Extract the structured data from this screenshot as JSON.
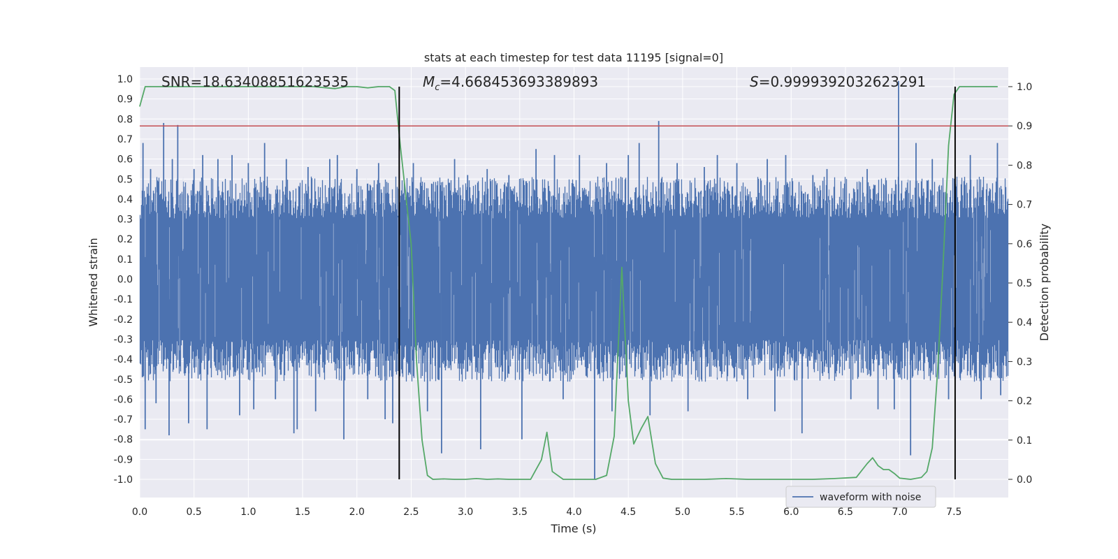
{
  "chart_data": {
    "type": "line",
    "title": "stats at each timestep for test data 11195 [signal=0]",
    "xlabel": "Time (s)",
    "ylabel": "Whitened strain",
    "ylabel_right": "Detection probability",
    "xlim": [
      0.0,
      8.0
    ],
    "ylim": [
      -1.1,
      1.05
    ],
    "ylim_right": [
      -0.05,
      1.05
    ],
    "grid": true,
    "legend_placement": "lower-right",
    "x_ticks": [
      "0.0",
      "0.5",
      "1.0",
      "1.5",
      "2.0",
      "2.5",
      "3.0",
      "3.5",
      "4.0",
      "4.5",
      "5.0",
      "5.5",
      "6.0",
      "6.5",
      "7.0",
      "7.5"
    ],
    "y_ticks": [
      "1.0",
      "0.9",
      "0.8",
      "0.7",
      "0.6",
      "0.5",
      "0.4",
      "0.3",
      "0.2",
      "0.1",
      "0.0",
      "-0.1",
      "-0.2",
      "-0.3",
      "-0.4",
      "-0.5",
      "-0.6",
      "-0.7",
      "-0.8",
      "-0.9",
      "-1.0"
    ],
    "y_ticks_right": [
      "1.0",
      "0.9",
      "0.8",
      "0.7",
      "0.6",
      "0.5",
      "0.4",
      "0.3",
      "0.2",
      "0.1",
      "0.0"
    ],
    "annotations": {
      "snr": "SNR=18.63408851623535",
      "mc_symbol": "M",
      "mc_sub": "c",
      "mc_value": "=4.668453693389893",
      "s_symbol": "S",
      "s_value": "=0.9999392032623291"
    },
    "series": [
      {
        "name": "waveform with noise",
        "color": "#4c72b0",
        "axis": "left",
        "envelope_typical": 0.42,
        "spikes": [
          {
            "x": 0.03,
            "y": 0.68
          },
          {
            "x": 0.05,
            "y": -0.75
          },
          {
            "x": 0.1,
            "y": 0.55
          },
          {
            "x": 0.15,
            "y": -0.62
          },
          {
            "x": 0.22,
            "y": 0.78
          },
          {
            "x": 0.27,
            "y": -0.78
          },
          {
            "x": 0.3,
            "y": 0.6
          },
          {
            "x": 0.35,
            "y": 0.77
          },
          {
            "x": 0.45,
            "y": -0.72
          },
          {
            "x": 0.5,
            "y": 0.55
          },
          {
            "x": 0.58,
            "y": 0.62
          },
          {
            "x": 0.62,
            "y": -0.75
          },
          {
            "x": 0.72,
            "y": 0.6
          },
          {
            "x": 0.85,
            "y": 0.62
          },
          {
            "x": 0.92,
            "y": -0.68
          },
          {
            "x": 1.0,
            "y": 0.58
          },
          {
            "x": 1.05,
            "y": -0.65
          },
          {
            "x": 1.15,
            "y": 0.68
          },
          {
            "x": 1.25,
            "y": -0.6
          },
          {
            "x": 1.35,
            "y": 0.6
          },
          {
            "x": 1.42,
            "y": -0.77
          },
          {
            "x": 1.45,
            "y": -0.75
          },
          {
            "x": 1.55,
            "y": 0.56
          },
          {
            "x": 1.62,
            "y": -0.66
          },
          {
            "x": 1.75,
            "y": 0.6
          },
          {
            "x": 1.82,
            "y": 0.62
          },
          {
            "x": 1.88,
            "y": -0.8
          },
          {
            "x": 2.0,
            "y": 0.55
          },
          {
            "x": 2.1,
            "y": -0.6
          },
          {
            "x": 2.2,
            "y": 0.58
          },
          {
            "x": 2.26,
            "y": -0.7
          },
          {
            "x": 2.33,
            "y": -0.72
          },
          {
            "x": 2.52,
            "y": 0.58
          },
          {
            "x": 2.65,
            "y": -0.66
          },
          {
            "x": 2.78,
            "y": -0.87
          },
          {
            "x": 2.9,
            "y": 0.6
          },
          {
            "x": 3.02,
            "y": 0.52
          },
          {
            "x": 3.14,
            "y": -0.85
          },
          {
            "x": 3.2,
            "y": 0.55
          },
          {
            "x": 3.4,
            "y": 0.52
          },
          {
            "x": 3.52,
            "y": -0.8
          },
          {
            "x": 3.65,
            "y": 0.65
          },
          {
            "x": 3.82,
            "y": 0.62
          },
          {
            "x": 3.9,
            "y": -0.6
          },
          {
            "x": 4.05,
            "y": 0.62
          },
          {
            "x": 4.19,
            "y": -1.0
          },
          {
            "x": 4.3,
            "y": 0.58
          },
          {
            "x": 4.35,
            "y": -0.66
          },
          {
            "x": 4.5,
            "y": 0.62
          },
          {
            "x": 4.6,
            "y": 0.68
          },
          {
            "x": 4.7,
            "y": -0.68
          },
          {
            "x": 4.78,
            "y": 0.79
          },
          {
            "x": 4.95,
            "y": 0.58
          },
          {
            "x": 5.05,
            "y": -0.66
          },
          {
            "x": 5.2,
            "y": 0.56
          },
          {
            "x": 5.32,
            "y": 0.62
          },
          {
            "x": 5.5,
            "y": 0.58
          },
          {
            "x": 5.6,
            "y": -0.6
          },
          {
            "x": 5.78,
            "y": 0.6
          },
          {
            "x": 5.85,
            "y": -0.66
          },
          {
            "x": 5.95,
            "y": 0.62
          },
          {
            "x": 6.1,
            "y": -0.77
          },
          {
            "x": 6.2,
            "y": 0.52
          },
          {
            "x": 6.33,
            "y": 0.55
          },
          {
            "x": 6.55,
            "y": -0.6
          },
          {
            "x": 6.7,
            "y": 0.55
          },
          {
            "x": 6.8,
            "y": -0.65
          },
          {
            "x": 6.95,
            "y": -0.65
          },
          {
            "x": 6.99,
            "y": 0.99
          },
          {
            "x": 7.1,
            "y": -0.88
          },
          {
            "x": 7.15,
            "y": 0.68
          },
          {
            "x": 7.3,
            "y": 0.6
          },
          {
            "x": 7.45,
            "y": -0.6
          },
          {
            "x": 7.65,
            "y": 0.62
          },
          {
            "x": 7.75,
            "y": -0.6
          },
          {
            "x": 7.9,
            "y": 0.68
          },
          {
            "x": 7.93,
            "y": -0.58
          }
        ]
      },
      {
        "name": "",
        "color": "#55a868",
        "axis": "right",
        "x": [
          0.0,
          0.05,
          0.1,
          0.3,
          0.5,
          0.7,
          0.9,
          1.0,
          1.2,
          1.4,
          1.6,
          1.8,
          1.9,
          2.0,
          2.1,
          2.2,
          2.3,
          2.35,
          2.4,
          2.5,
          2.55,
          2.6,
          2.65,
          2.7,
          2.8,
          2.9,
          3.0,
          3.1,
          3.2,
          3.3,
          3.4,
          3.5,
          3.6,
          3.7,
          3.75,
          3.8,
          3.9,
          4.0,
          4.1,
          4.2,
          4.3,
          4.37,
          4.44,
          4.5,
          4.55,
          4.62,
          4.68,
          4.75,
          4.82,
          4.9,
          5.0,
          5.2,
          5.4,
          5.6,
          5.8,
          6.0,
          6.2,
          6.4,
          6.6,
          6.7,
          6.75,
          6.8,
          6.85,
          6.9,
          6.95,
          7.0,
          7.1,
          7.2,
          7.25,
          7.3,
          7.35,
          7.4,
          7.45,
          7.5,
          7.55,
          7.6,
          7.7,
          7.8,
          7.9
        ],
        "values": [
          0.95,
          1.0,
          1.0,
          1.0,
          1.0,
          1.0,
          1.0,
          1.0,
          1.0,
          1.0,
          1.0,
          0.995,
          1.0,
          1.0,
          0.997,
          1.0,
          1.0,
          0.99,
          0.85,
          0.6,
          0.3,
          0.1,
          0.01,
          0.0,
          0.001,
          0.0,
          0.0,
          0.002,
          0.0,
          0.001,
          0.0,
          0.0,
          0.0,
          0.05,
          0.12,
          0.02,
          0.0,
          0.0,
          0.0,
          0.0,
          0.01,
          0.11,
          0.54,
          0.2,
          0.09,
          0.13,
          0.16,
          0.04,
          0.003,
          0.0,
          0.0,
          0.0,
          0.002,
          0.0,
          0.0,
          0.0,
          0.0,
          0.002,
          0.005,
          0.04,
          0.055,
          0.035,
          0.025,
          0.025,
          0.015,
          0.003,
          0.0,
          0.005,
          0.02,
          0.08,
          0.28,
          0.55,
          0.85,
          0.98,
          1.0,
          1.0,
          1.0,
          1.0,
          1.0
        ]
      }
    ],
    "threshold_line": {
      "y_right": 0.9,
      "color": "#c44e52"
    },
    "vertical_lines": [
      {
        "x": 2.39,
        "y_from": -1.0,
        "y_to": 1.0
      },
      {
        "x": 7.51,
        "y_from": -1.0,
        "y_to": 1.0
      }
    ]
  }
}
